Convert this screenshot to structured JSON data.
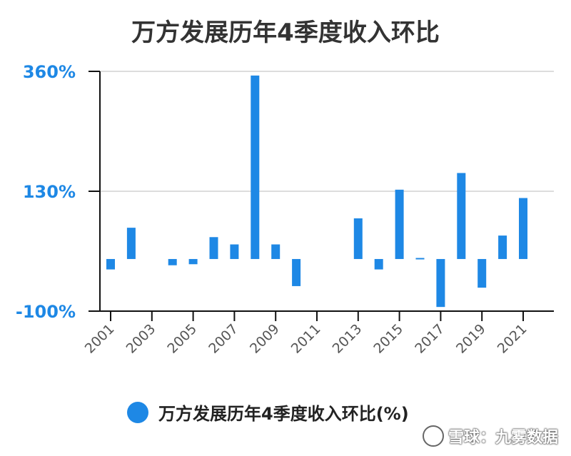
{
  "colors": {
    "bar": "#1e88e5",
    "tick": "#1e88e5",
    "axis": "#111111",
    "grid": "#dddddd"
  },
  "legend": {
    "label": "万方发展历年4季度收入环比(%)",
    "position": "bottom"
  },
  "watermark": {
    "text": "雪球：九雾数据"
  },
  "chart_data": {
    "type": "bar",
    "title": "万方发展历年4季度收入环比",
    "xlabel": "",
    "ylabel": "",
    "ylim": [
      -100,
      360
    ],
    "yticks": [
      "-100%",
      "130%",
      "360%"
    ],
    "ytick_values": [
      -100,
      130,
      360
    ],
    "grid": true,
    "xtick_labels": [
      "2001",
      "2003",
      "2005",
      "2007",
      "2009",
      "2011",
      "2013",
      "2015",
      "2017",
      "2019",
      "2021"
    ],
    "categories": [
      "2001",
      "2002",
      "2003",
      "2004",
      "2005",
      "2006",
      "2007",
      "2008",
      "2009",
      "2010",
      "2011",
      "2012",
      "2013",
      "2014",
      "2015",
      "2016",
      "2017",
      "2018",
      "2019",
      "2020",
      "2021"
    ],
    "series": [
      {
        "name": "万方发展历年4季度收入环比(%)",
        "values": [
          -20,
          60,
          null,
          -12,
          -10,
          42,
          28,
          352,
          28,
          -52,
          null,
          null,
          78,
          -20,
          133,
          2,
          -92,
          165,
          -55,
          45,
          117
        ]
      }
    ]
  }
}
